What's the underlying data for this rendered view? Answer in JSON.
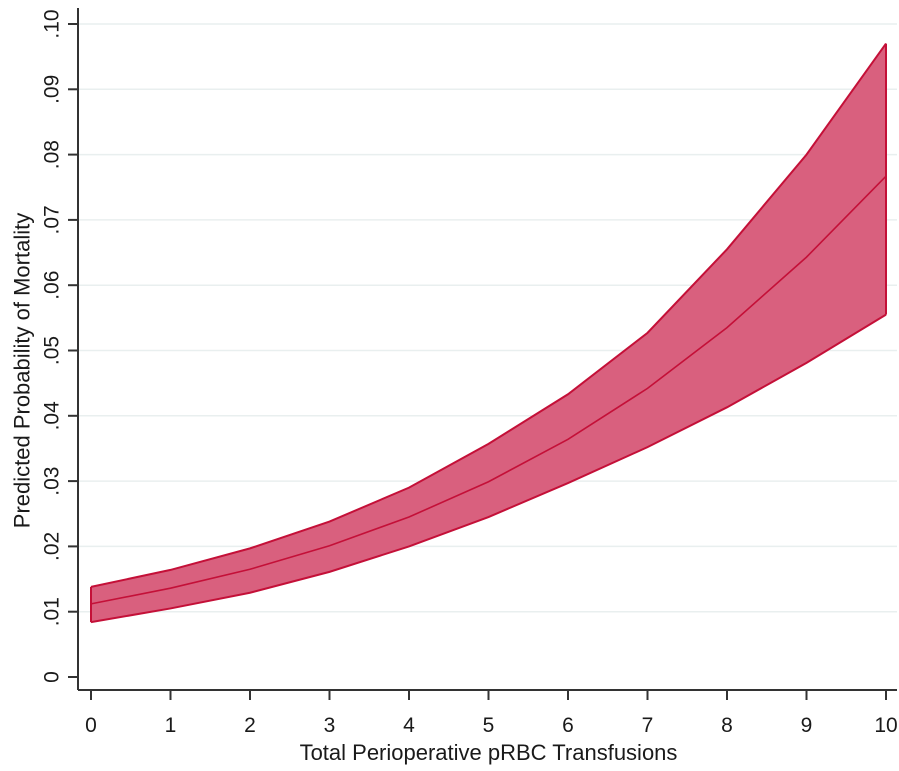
{
  "chart_data": {
    "type": "area",
    "title": "",
    "xlabel": "Total Perioperative pRBC Transfusions",
    "ylabel": "Predicted Probability of Mortality",
    "xlim": [
      0,
      10
    ],
    "ylim": [
      0,
      0.1
    ],
    "x_ticks": [
      0,
      1,
      2,
      3,
      4,
      5,
      6,
      7,
      8,
      9,
      10
    ],
    "x_tick_labels": [
      "0",
      "1",
      "2",
      "3",
      "4",
      "5",
      "6",
      "7",
      "8",
      "9",
      "10"
    ],
    "y_ticks": [
      0,
      0.01,
      0.02,
      0.03,
      0.04,
      0.05,
      0.06,
      0.07,
      0.08,
      0.09,
      0.1
    ],
    "y_tick_labels": [
      "0",
      ".01",
      ".02",
      ".03",
      ".04",
      ".05",
      ".06",
      ".07",
      ".08",
      ".09",
      ".10"
    ],
    "grid": true,
    "x": [
      0,
      1,
      2,
      3,
      4,
      5,
      6,
      7,
      8,
      9,
      10
    ],
    "prediction": [
      0.0112,
      0.0136,
      0.0165,
      0.0201,
      0.0245,
      0.0299,
      0.0364,
      0.0442,
      0.0535,
      0.0643,
      0.0767
    ],
    "lower": [
      0.0084,
      0.0105,
      0.0129,
      0.0161,
      0.02,
      0.0245,
      0.0297,
      0.0352,
      0.0413,
      0.0481,
      0.0555
    ],
    "upper": [
      0.0138,
      0.0164,
      0.0197,
      0.0238,
      0.029,
      0.0357,
      0.0433,
      0.0527,
      0.0655,
      0.08,
      0.097
    ],
    "colors": {
      "band_fill": "#d9607e",
      "band_edge": "#c41038",
      "line": "#c41038",
      "axis": "#333333",
      "grid": "#e9efef"
    }
  }
}
